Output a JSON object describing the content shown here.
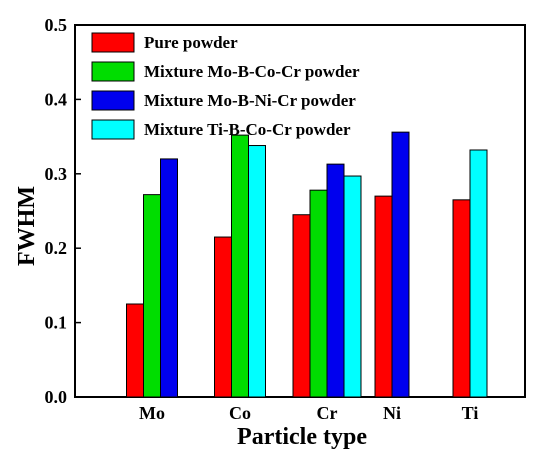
{
  "chart_data": {
    "type": "bar",
    "title": "",
    "xlabel": "Particle type",
    "ylabel": "FWHM",
    "ylim": [
      0.0,
      0.5
    ],
    "yticks": [
      "0.0",
      "0.1",
      "0.2",
      "0.3",
      "0.4",
      "0.5"
    ],
    "grid": false,
    "legend_position": "top-left",
    "categories": [
      "Mo",
      "Co",
      "Cr",
      "Ni",
      "Ti"
    ],
    "series": [
      {
        "name": "Pure powder",
        "color": "#ff0000",
        "values": [
          0.125,
          0.215,
          0.245,
          0.27,
          0.265
        ]
      },
      {
        "name": "Mixture Mo-B-Co-Cr powder",
        "color": "#00dd00",
        "values": [
          0.272,
          0.352,
          0.278,
          null,
          null
        ]
      },
      {
        "name": "Mixture Mo-B-Ni-Cr powder",
        "color": "#0000ee",
        "values": [
          0.32,
          null,
          0.313,
          0.356,
          null
        ]
      },
      {
        "name": "Mixture Ti-B-Co-Cr powder",
        "color": "#00ffff",
        "values": [
          null,
          0.338,
          0.297,
          null,
          0.332
        ]
      }
    ]
  }
}
